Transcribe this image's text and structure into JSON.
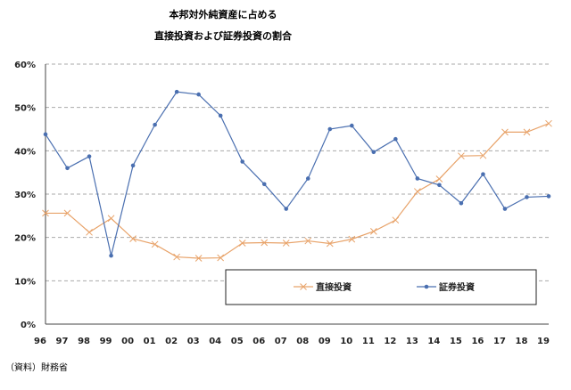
{
  "chart_data": {
    "type": "line",
    "title": [
      "本邦対外純資産に占める",
      "直接投資および証券投資の割合"
    ],
    "xlabel": "",
    "ylabel": "",
    "categories": [
      "96",
      "97",
      "98",
      "99",
      "00",
      "01",
      "02",
      "03",
      "04",
      "05",
      "06",
      "07",
      "08",
      "09",
      "10",
      "11",
      "12",
      "13",
      "14",
      "15",
      "16",
      "17",
      "18",
      "19"
    ],
    "ylim": [
      0,
      60
    ],
    "yticks": [
      "0%",
      "10%",
      "20%",
      "30%",
      "40%",
      "50%",
      "60%"
    ],
    "grid": true,
    "legend_position": "bottom-right",
    "series": [
      {
        "name": "直接投資",
        "color": "#e8a36a",
        "marker": "x",
        "values": [
          25.6,
          25.6,
          21.2,
          24.4,
          19.7,
          18.4,
          15.5,
          15.2,
          15.3,
          18.7,
          18.8,
          18.7,
          19.2,
          18.6,
          19.6,
          21.4,
          24.0,
          30.6,
          33.5,
          38.8,
          38.9,
          44.3,
          44.3,
          46.3
        ]
      },
      {
        "name": "証券投資",
        "color": "#4a6fb0",
        "marker": "circle",
        "values": [
          43.8,
          36.0,
          38.7,
          15.8,
          36.6,
          46.0,
          53.6,
          53.0,
          48.1,
          37.5,
          32.3,
          26.6,
          33.6,
          45.0,
          45.8,
          39.7,
          42.7,
          33.6,
          32.1,
          27.9,
          34.6,
          26.6,
          29.3,
          29.5
        ]
      }
    ]
  },
  "note": "（資料）財務省"
}
